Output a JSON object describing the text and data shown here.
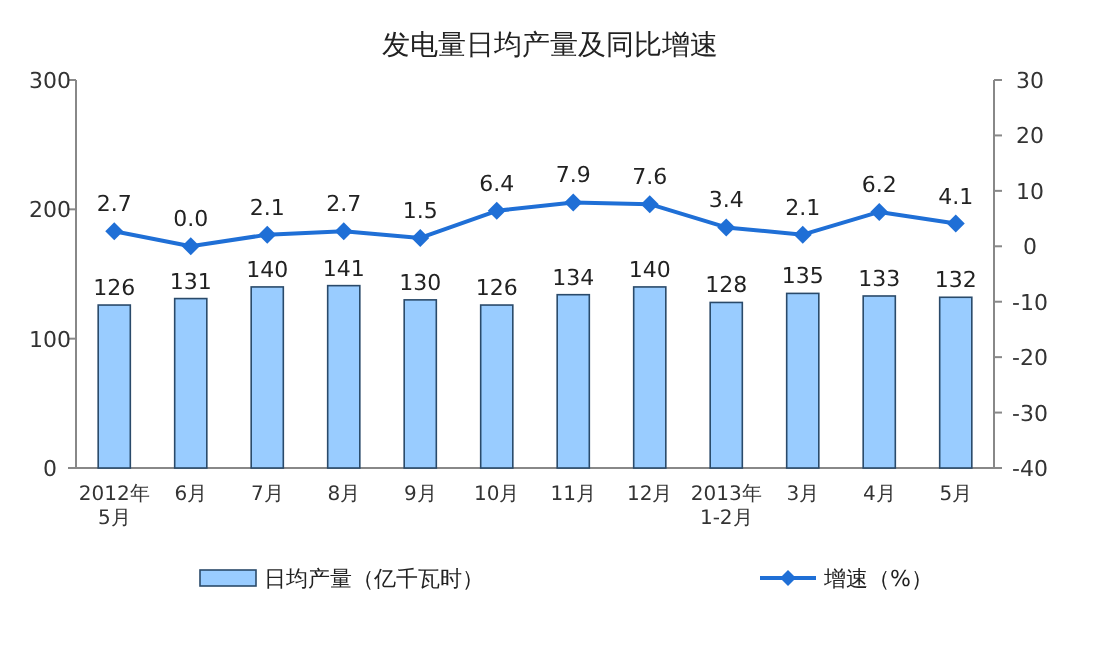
{
  "chart_data": {
    "type": "bar",
    "title": "发电量日均产量及同比增速",
    "categories": [
      "2012年\n5月",
      "6月",
      "7月",
      "8月",
      "9月",
      "10月",
      "11月",
      "12月",
      "2013年\n1-2月",
      "3月",
      "4月",
      "5月"
    ],
    "series": [
      {
        "name": "日均产量（亿千瓦时）",
        "color": "#99ccff",
        "values": [
          126,
          131,
          140,
          141,
          130,
          126,
          134,
          140,
          128,
          135,
          133,
          132
        ]
      },
      {
        "name": "增速（%）",
        "type": "line",
        "axis": "y2",
        "color": "#1f6fd6",
        "values": [
          2.7,
          0.0,
          2.1,
          2.7,
          1.5,
          6.4,
          7.9,
          7.6,
          3.4,
          2.1,
          6.2,
          4.1
        ],
        "value_labels": [
          "2.7",
          "0.0",
          "2.1",
          "2.7",
          "1.5",
          "6.4",
          "7.9",
          "7.6",
          "3.4",
          "2.1",
          "6.2",
          "4.1"
        ]
      }
    ],
    "ylim": [
      0,
      300
    ],
    "yticks": [
      0,
      100,
      200,
      300
    ],
    "y2lim": [
      -40,
      30
    ],
    "y2ticks": [
      -40,
      -30,
      -20,
      -10,
      0,
      10,
      20,
      30
    ],
    "data_labels": true,
    "legend": "bottom",
    "marker": "diamond",
    "grid": false
  }
}
